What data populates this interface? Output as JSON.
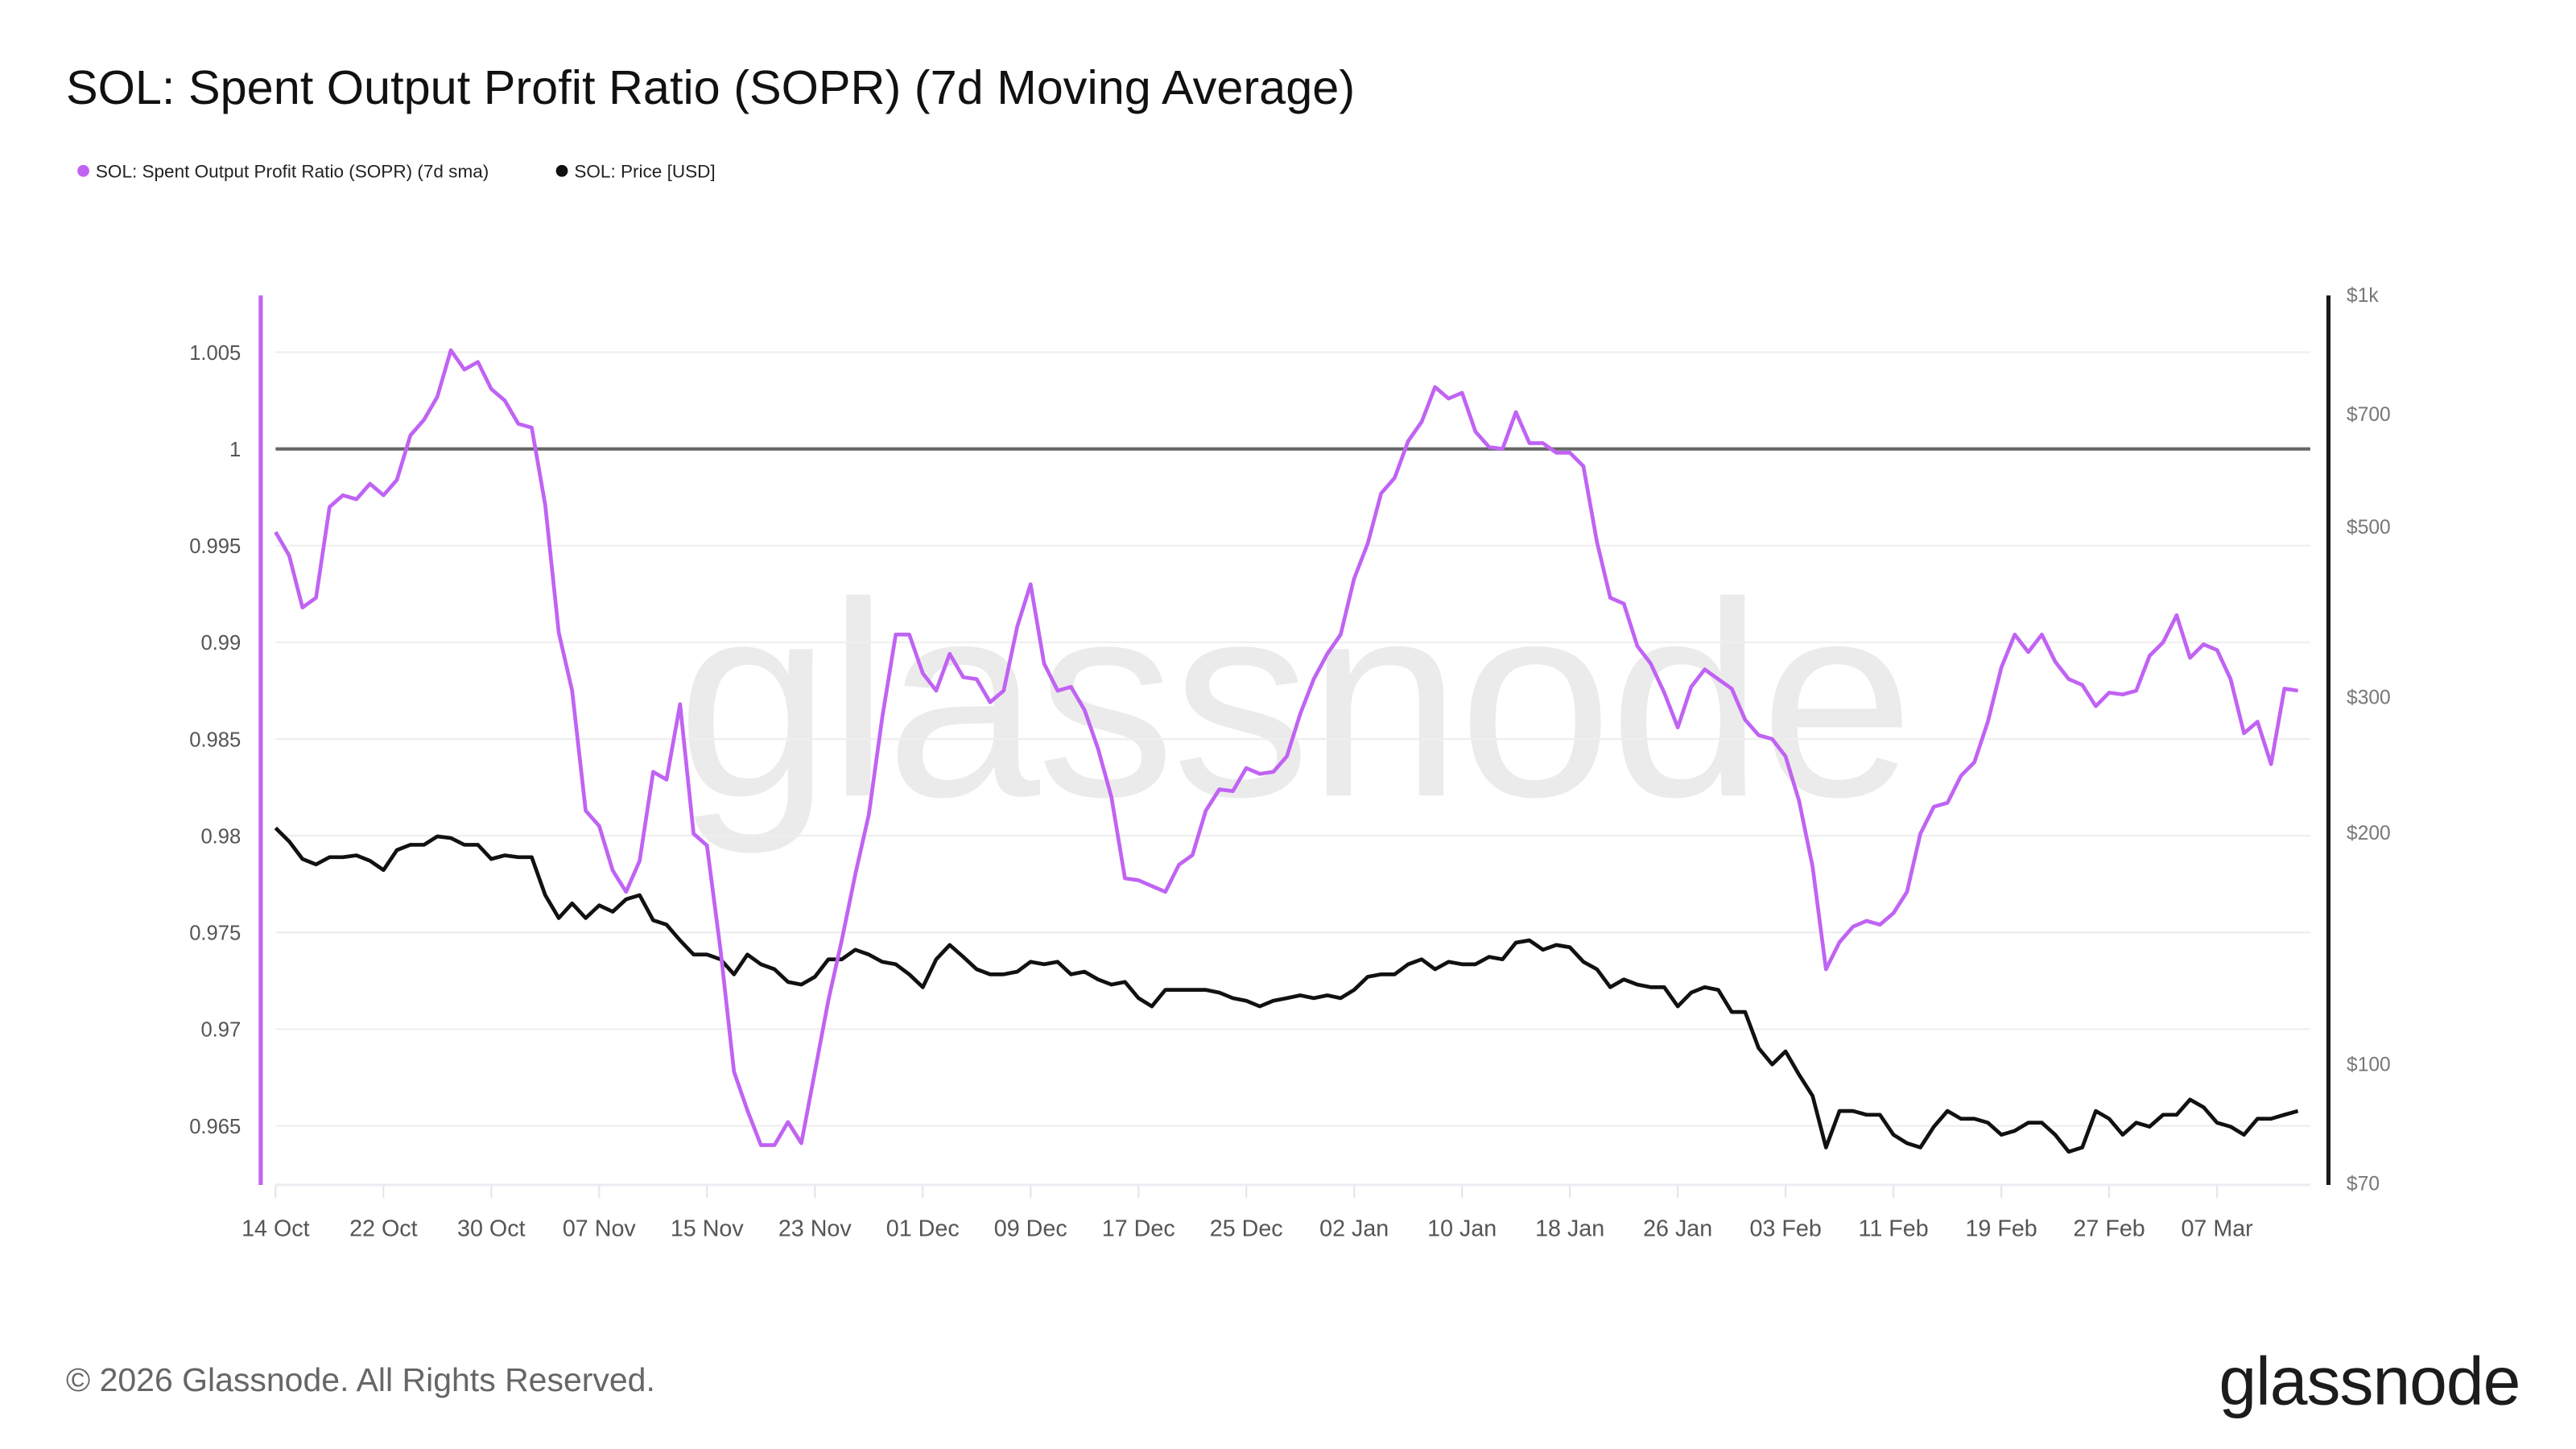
{
  "title": "SOL: Spent Output Profit Ratio (SOPR) (7d Moving Average)",
  "footer": "© 2026 Glassnode. All Rights Reserved.",
  "logo": "glassnode",
  "watermark": "glassnode",
  "colors": {
    "sopr": "#c063f3",
    "price": "#111111",
    "reference": "#666666",
    "grid": "#eeeeee"
  },
  "chart_data": {
    "type": "line",
    "title": "SOL: Spent Output Profit Ratio (SOPR) (7d Moving Average)",
    "legend": [
      {
        "label": "SOL: Spent Output Profit Ratio (SOPR) (7d sma)",
        "color": "#c063f3"
      },
      {
        "label": "SOL: Price [USD]",
        "color": "#111111"
      }
    ],
    "legend_placement": "top-left",
    "grid": true,
    "y_left": {
      "range": [
        0.9622,
        1.0081
      ],
      "ticks": [
        0.965,
        0.97,
        0.975,
        0.98,
        0.985,
        0.99,
        0.995,
        1,
        1.005
      ],
      "tick_labels": [
        "0.965",
        "0.97",
        "0.975",
        "0.98",
        "0.985",
        "0.99",
        "0.995",
        "1",
        "1.005"
      ],
      "reference_line": 1
    },
    "y_right": {
      "scale": "log",
      "range": [
        70,
        1000
      ],
      "ticks": [
        70,
        100,
        200,
        300,
        500,
        700,
        1000
      ],
      "tick_labels": [
        "$70",
        "$100",
        "$200",
        "$300",
        "$500",
        "$700",
        "$1k"
      ]
    },
    "x_tick_labels": [
      "14 Oct",
      "22 Oct",
      "30 Oct",
      "07 Nov",
      "15 Nov",
      "23 Nov",
      "01 Dec",
      "09 Dec",
      "17 Dec",
      "25 Dec",
      "02 Jan",
      "10 Jan",
      "18 Jan",
      "26 Jan",
      "03 Feb",
      "11 Feb",
      "19 Feb",
      "27 Feb",
      "07 Mar"
    ],
    "x": [
      "14 Oct",
      "15 Oct",
      "16 Oct",
      "17 Oct",
      "18 Oct",
      "19 Oct",
      "20 Oct",
      "21 Oct",
      "22 Oct",
      "23 Oct",
      "24 Oct",
      "25 Oct",
      "26 Oct",
      "27 Oct",
      "28 Oct",
      "29 Oct",
      "30 Oct",
      "31 Oct",
      "01 Nov",
      "02 Nov",
      "03 Nov",
      "04 Nov",
      "05 Nov",
      "06 Nov",
      "07 Nov",
      "08 Nov",
      "09 Nov",
      "10 Nov",
      "11 Nov",
      "12 Nov",
      "13 Nov",
      "14 Nov",
      "15 Nov",
      "16 Nov",
      "17 Nov",
      "18 Nov",
      "19 Nov",
      "20 Nov",
      "21 Nov",
      "22 Nov",
      "23 Nov",
      "24 Nov",
      "25 Nov",
      "26 Nov",
      "27 Nov",
      "28 Nov",
      "29 Nov",
      "30 Nov",
      "01 Dec",
      "02 Dec",
      "03 Dec",
      "04 Dec",
      "05 Dec",
      "06 Dec",
      "07 Dec",
      "08 Dec",
      "09 Dec",
      "10 Dec",
      "11 Dec",
      "12 Dec",
      "13 Dec",
      "14 Dec",
      "15 Dec",
      "16 Dec",
      "17 Dec",
      "18 Dec",
      "19 Dec",
      "20 Dec",
      "21 Dec",
      "22 Dec",
      "23 Dec",
      "24 Dec",
      "25 Dec",
      "26 Dec",
      "27 Dec",
      "28 Dec",
      "29 Dec",
      "30 Dec",
      "31 Dec",
      "01 Jan",
      "02 Jan",
      "03 Jan",
      "04 Jan",
      "05 Jan",
      "06 Jan",
      "07 Jan",
      "08 Jan",
      "09 Jan",
      "10 Jan",
      "11 Jan",
      "12 Jan",
      "13 Jan",
      "14 Jan",
      "15 Jan",
      "16 Jan",
      "17 Jan",
      "18 Jan",
      "19 Jan",
      "20 Jan",
      "21 Jan",
      "22 Jan",
      "23 Jan",
      "24 Jan",
      "25 Jan",
      "26 Jan",
      "27 Jan",
      "28 Jan",
      "29 Jan",
      "30 Jan",
      "31 Jan",
      "01 Feb",
      "02 Feb",
      "03 Feb",
      "04 Feb",
      "05 Feb",
      "06 Feb",
      "07 Feb",
      "08 Feb",
      "09 Feb",
      "10 Feb",
      "11 Feb",
      "12 Feb",
      "13 Feb",
      "14 Feb",
      "15 Feb",
      "16 Feb",
      "17 Feb",
      "18 Feb",
      "19 Feb",
      "20 Feb",
      "21 Feb",
      "22 Feb",
      "23 Feb",
      "24 Feb",
      "25 Feb",
      "26 Feb",
      "27 Feb",
      "28 Feb",
      "01 Mar",
      "02 Mar",
      "03 Mar",
      "04 Mar",
      "05 Mar",
      "06 Mar",
      "07 Mar",
      "08 Mar",
      "09 Mar",
      "10 Mar",
      "11 Mar",
      "12 Mar",
      "13 Mar"
    ],
    "series": [
      {
        "name": "SOL: Spent Output Profit Ratio (SOPR) (7d sma)",
        "axis": "left",
        "values": [
          0.9957,
          0.9945,
          0.9918,
          0.9923,
          0.997,
          0.9976,
          0.9974,
          0.9982,
          0.9976,
          0.9984,
          1.0007,
          1.0015,
          1.0027,
          1.0051,
          1.0041,
          1.0045,
          1.0031,
          1.0025,
          1.0013,
          1.0011,
          0.9971,
          0.9905,
          0.9875,
          0.9813,
          0.9805,
          0.9782,
          0.9771,
          0.9787,
          0.9833,
          0.9829,
          0.9868,
          0.9801,
          0.9795,
          0.9741,
          0.9678,
          0.9658,
          0.964,
          0.964,
          0.9652,
          0.9641,
          0.9678,
          0.9715,
          0.9746,
          0.978,
          0.9811,
          0.9861,
          0.9904,
          0.9904,
          0.9884,
          0.9875,
          0.9894,
          0.9882,
          0.9881,
          0.9869,
          0.9875,
          0.9908,
          0.993,
          0.9889,
          0.9875,
          0.9877,
          0.9865,
          0.9845,
          0.982,
          0.9778,
          0.9777,
          0.9774,
          0.9771,
          0.9785,
          0.979,
          0.9813,
          0.9824,
          0.9823,
          0.9835,
          0.9832,
          0.9833,
          0.9841,
          0.9863,
          0.9881,
          0.9894,
          0.9904,
          0.9933,
          0.9951,
          0.9977,
          0.9985,
          1.0004,
          1.0014,
          1.0032,
          1.0026,
          1.0029,
          1.0009,
          1.0001,
          1.0,
          1.0019,
          1.0003,
          1.0003,
          0.9998,
          0.9998,
          0.9991,
          0.9952,
          0.9923,
          0.992,
          0.9898,
          0.9889,
          0.9874,
          0.9856,
          0.9877,
          0.9886,
          0.9881,
          0.9876,
          0.986,
          0.9852,
          0.985,
          0.9841,
          0.9818,
          0.9784,
          0.9731,
          0.9745,
          0.9753,
          0.9756,
          0.9754,
          0.976,
          0.9771,
          0.9801,
          0.9815,
          0.9817,
          0.9831,
          0.9838,
          0.9859,
          0.9887,
          0.9904,
          0.9895,
          0.9904,
          0.989,
          0.9881,
          0.9878,
          0.9867,
          0.9874,
          0.9873,
          0.9875,
          0.9893,
          0.99,
          0.9914,
          0.9892,
          0.9899,
          0.9896,
          0.9881,
          0.9853,
          0.9859,
          0.9837,
          0.9876,
          0.9875
        ]
      },
      {
        "name": "SOL: Price [USD]",
        "axis": "right",
        "values": [
          203,
          195,
          185,
          182,
          186,
          186,
          187,
          184,
          179,
          190,
          193,
          193,
          198,
          197,
          193,
          193,
          185,
          187,
          186,
          186,
          166,
          155,
          162,
          155,
          161,
          158,
          164,
          166,
          154,
          152,
          145,
          139,
          139,
          137,
          131,
          139,
          135,
          133,
          128,
          127,
          130,
          137,
          137,
          141,
          139,
          136,
          135,
          131,
          126,
          137,
          143,
          138,
          133,
          131,
          131,
          132,
          136,
          135,
          136,
          131,
          132,
          129,
          127,
          128,
          122,
          119,
          125,
          125,
          125,
          125,
          124,
          122,
          121,
          119,
          121,
          122,
          123,
          122,
          123,
          122,
          125,
          130,
          131,
          131,
          135,
          137,
          133,
          136,
          135,
          135,
          138,
          137,
          144,
          145,
          141,
          143,
          142,
          136,
          133,
          126,
          129,
          127,
          126,
          126,
          119,
          124,
          126,
          125,
          117,
          117,
          105,
          100,
          104,
          97,
          91,
          78,
          87,
          87,
          86,
          86,
          81,
          79,
          78,
          83,
          87,
          85,
          85,
          84,
          81,
          82,
          84,
          84,
          81,
          77,
          78,
          87,
          85,
          81,
          84,
          83,
          86,
          86,
          90,
          88,
          84,
          83,
          81,
          85,
          85,
          86,
          87
        ]
      }
    ]
  }
}
